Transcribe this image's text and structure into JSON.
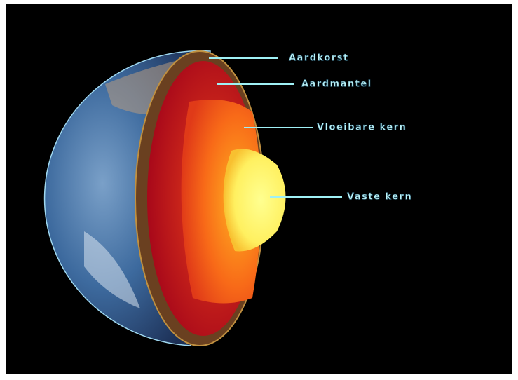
{
  "labels": {
    "crust": "Aardkorst",
    "mantle": "Aardmantel",
    "outer_core": "Vloeibare kern",
    "inner_core": "Vaste kern"
  }
}
